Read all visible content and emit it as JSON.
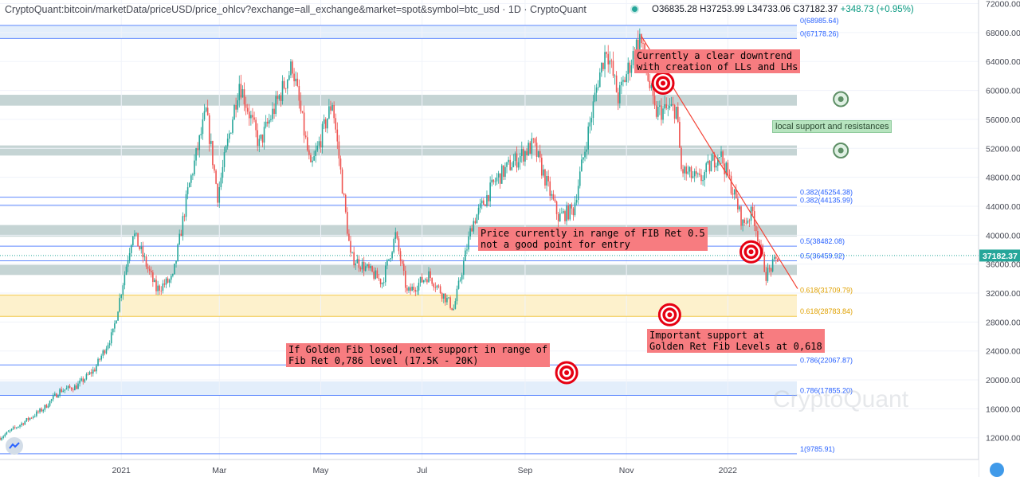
{
  "header": {
    "symbol": "CryptoQuant:bitcoin/marketData/priceUSD/price_ohlcv?exchange=all_exchange&market=spot&symbol=btc_usd · 1D · CryptoQuant",
    "ohlc": "O36835.28 H37253.99 L34733.06 C37182.37",
    "change": "+348.73 (+0.95%)"
  },
  "watermark": "CryptoQuant",
  "colors": {
    "up": "#26a69a",
    "down": "#ef5350",
    "fib_line": "#2962ff",
    "zone_gray": "#b2c5c5",
    "zone_gold": "#fdf1cc",
    "zone_blue": "#e3eefb",
    "annotation_red": "#f77c80",
    "trendline": "#f44336",
    "target": "#e60012"
  },
  "chart_data": {
    "type": "candlestick",
    "title": "",
    "y_axis": {
      "min": 9000,
      "max": 72500,
      "side": "right",
      "ticks": [
        12000,
        16000,
        20000,
        24000,
        28000,
        32000,
        36000,
        40000,
        44000,
        48000,
        52000,
        56000,
        60000,
        64000,
        68000,
        72000
      ],
      "tick_labels": [
        "12000.00",
        "16000.00",
        "20000.00",
        "24000.00",
        "28000.00",
        "32000.00",
        "36000.00",
        "40000.00",
        "44000.00",
        "48000.00",
        "52000.00",
        "56000.00",
        "60000.00",
        "64000.00",
        "68000.00",
        "72000.00"
      ]
    },
    "x_axis": {
      "start": "2020-10-20",
      "end": "2022-03-20",
      "ticks": [
        {
          "date": "2021-01-01",
          "label": "2021"
        },
        {
          "date": "2021-03-01",
          "label": "Mar"
        },
        {
          "date": "2021-05-01",
          "label": "May"
        },
        {
          "date": "2021-07-01",
          "label": "Jul"
        },
        {
          "date": "2021-09-01",
          "label": "Sep"
        },
        {
          "date": "2021-11-01",
          "label": "Nov"
        },
        {
          "date": "2022-01-01",
          "label": "2022"
        }
      ]
    },
    "last_price": {
      "value": 37182.37,
      "label": "37182.37"
    },
    "price_path": [
      [
        "2020-10-20",
        12000
      ],
      [
        "2020-11-01",
        13800
      ],
      [
        "2020-11-15",
        16000
      ],
      [
        "2020-11-25",
        18500
      ],
      [
        "2020-12-05",
        19100
      ],
      [
        "2020-12-16",
        21500
      ],
      [
        "2020-12-27",
        26500
      ],
      [
        "2021-01-08",
        40500
      ],
      [
        "2021-01-22",
        32500
      ],
      [
        "2021-02-01",
        34000
      ],
      [
        "2021-02-10",
        46000
      ],
      [
        "2021-02-21",
        57000
      ],
      [
        "2021-02-28",
        45500
      ],
      [
        "2021-03-13",
        61200
      ],
      [
        "2021-03-25",
        52500
      ],
      [
        "2021-04-14",
        63500
      ],
      [
        "2021-04-25",
        49000
      ],
      [
        "2021-05-08",
        58500
      ],
      [
        "2021-05-19",
        37000
      ],
      [
        "2021-05-28",
        35500
      ],
      [
        "2021-06-07",
        33500
      ],
      [
        "2021-06-15",
        40000
      ],
      [
        "2021-06-22",
        32000
      ],
      [
        "2021-07-05",
        34500
      ],
      [
        "2021-07-20",
        29800
      ],
      [
        "2021-07-31",
        41500
      ],
      [
        "2021-08-14",
        47500
      ],
      [
        "2021-08-22",
        49500
      ],
      [
        "2021-09-06",
        52500
      ],
      [
        "2021-09-21",
        42500
      ],
      [
        "2021-09-30",
        43500
      ],
      [
        "2021-10-15",
        61500
      ],
      [
        "2021-10-20",
        66000
      ],
      [
        "2021-10-27",
        59000
      ],
      [
        "2021-11-09",
        67500
      ],
      [
        "2021-11-18",
        57000
      ],
      [
        "2021-12-01",
        57500
      ],
      [
        "2021-12-04",
        49000
      ],
      [
        "2021-12-15",
        47500
      ],
      [
        "2021-12-27",
        51500
      ],
      [
        "2022-01-05",
        45500
      ],
      [
        "2022-01-10",
        41500
      ],
      [
        "2022-01-16",
        43200
      ],
      [
        "2022-01-24",
        34500
      ],
      [
        "2022-02-01",
        37182
      ]
    ],
    "horizontal_levels": [
      {
        "value": 68985.64,
        "label": "0(68985.64)"
      },
      {
        "value": 67178.26,
        "label": "0(67178.26)"
      },
      {
        "value": 45254.38,
        "label": "0.382(45254.38)"
      },
      {
        "value": 44135.99,
        "label": "0.382(44135.99)"
      },
      {
        "value": 38482.08,
        "label": "0.5(38482.08)"
      },
      {
        "value": 36459.92,
        "label": "0.5(36459.92)"
      },
      {
        "value": 31709.79,
        "label": "0.618(31709.79)",
        "gold": true
      },
      {
        "value": 28783.84,
        "label": "0.618(28783.84)",
        "gold": true
      },
      {
        "value": 22067.87,
        "label": "0.786(22067.87)"
      },
      {
        "value": 17855.2,
        "label": "0.786(17855.20)"
      },
      {
        "value": 9785.91,
        "label": "1(9785.91)"
      }
    ],
    "zones": [
      {
        "from": 67178.26,
        "to": 68985.64,
        "kind": "blue"
      },
      {
        "from": 57900,
        "to": 59400,
        "kind": "gray"
      },
      {
        "from": 51000,
        "to": 52400,
        "kind": "gray"
      },
      {
        "from": 39800,
        "to": 41400,
        "kind": "gray"
      },
      {
        "from": 34500,
        "to": 35900,
        "kind": "gray"
      },
      {
        "from": 28783.84,
        "to": 31709.79,
        "kind": "gold"
      },
      {
        "from": 17855.2,
        "to": 19800,
        "kind": "blue"
      }
    ],
    "trendline": {
      "from": [
        "2021-11-10",
        67500
      ],
      "to": [
        "2022-02-12",
        32600
      ]
    },
    "markers": [
      {
        "date": "2021-11-23",
        "value": 61000,
        "style": "target"
      },
      {
        "date": "2022-01-15",
        "value": 37700,
        "style": "target"
      },
      {
        "date": "2021-11-27",
        "value": 29000,
        "style": "target"
      },
      {
        "date": "2021-09-26",
        "value": 21000,
        "style": "target"
      },
      {
        "date": "2022-03-10",
        "value": 58800,
        "style": "green"
      },
      {
        "date": "2022-03-10",
        "value": 51700,
        "style": "green"
      }
    ]
  },
  "annotations": {
    "downtrend": "Currently a clear downtrend\nwith creation of LLs and LHs",
    "local_sr": "local support and resistances",
    "fib_range": "Price currently in range of FIB Ret 0.5\nnot a good point for entry",
    "golden_support": "Important support at\nGolden Ret Fib Levels at 0,618",
    "golden_lost": "If Golden Fib losed, next support in range of\nFib Ret 0,786 level (17.5K - 20K)"
  }
}
